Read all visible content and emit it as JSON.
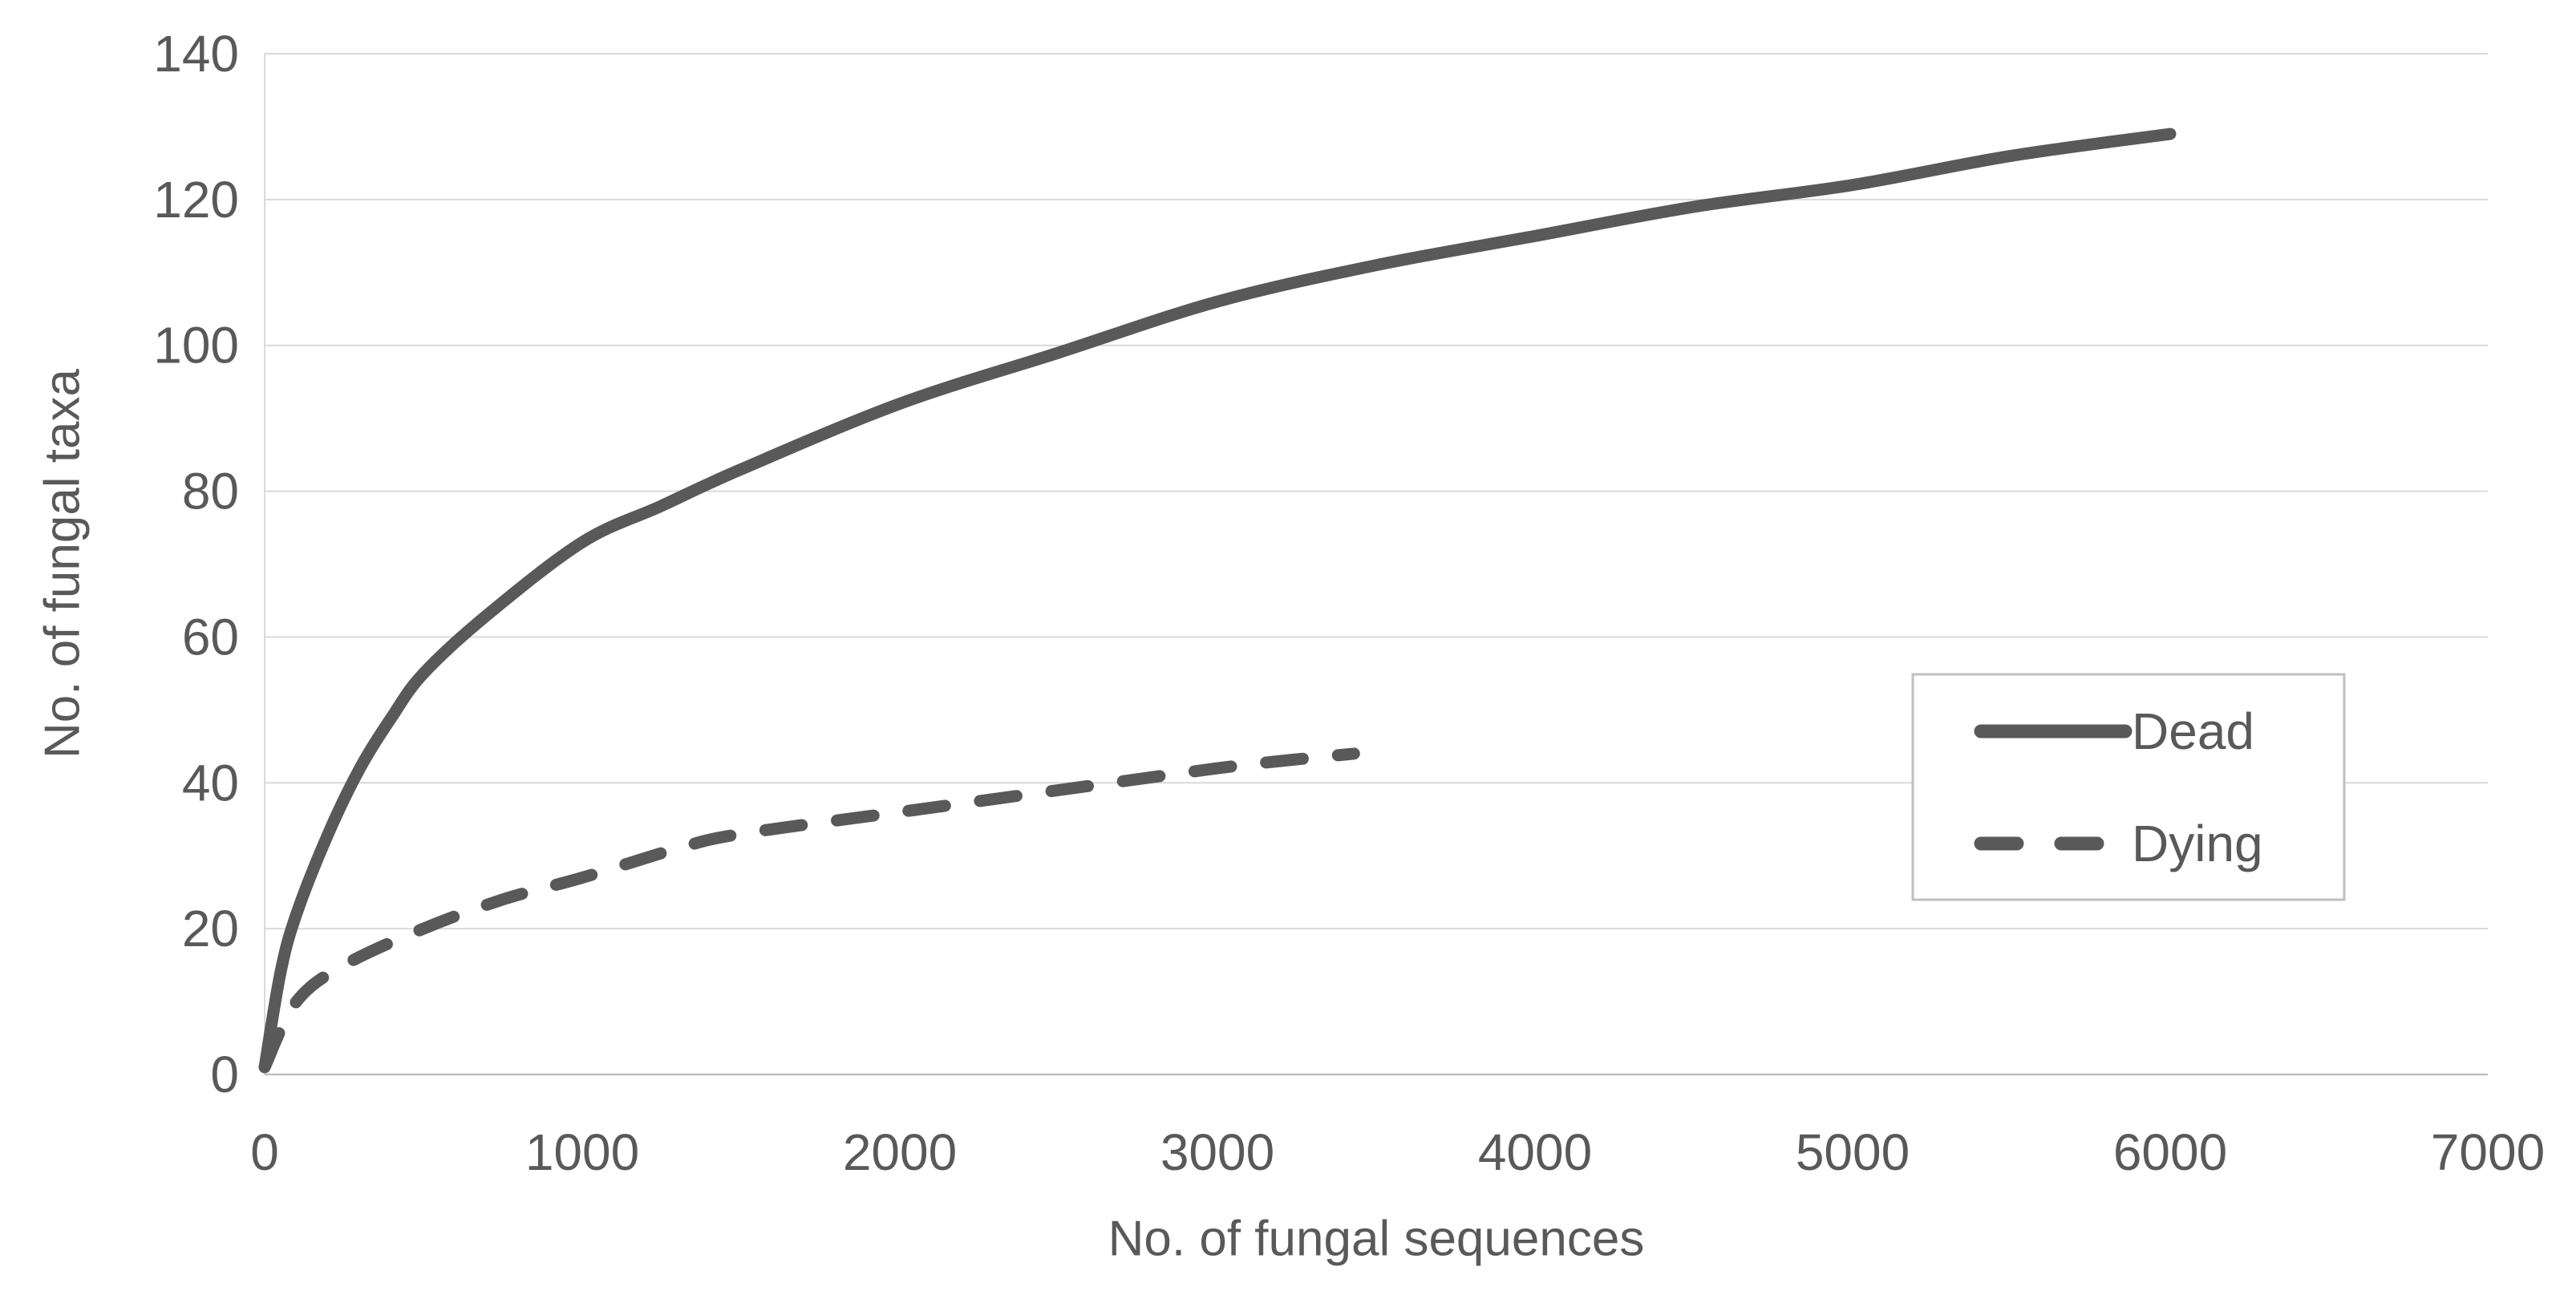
{
  "chart_data": {
    "type": "line",
    "title": "",
    "xlabel": "No. of fungal sequences",
    "ylabel": "No. of fungal taxa",
    "xlim": [
      0,
      7000
    ],
    "ylim": [
      0,
      140
    ],
    "x_ticks": [
      0,
      1000,
      2000,
      3000,
      4000,
      5000,
      6000,
      7000
    ],
    "y_ticks": [
      0,
      20,
      40,
      60,
      80,
      100,
      120,
      140
    ],
    "grid": "horizontal-only",
    "legend_position": "middle-right-box",
    "series": [
      {
        "name": "Dead",
        "style": "solid",
        "color": "#595959",
        "points": [
          [
            0,
            1
          ],
          [
            50,
            14
          ],
          [
            100,
            22
          ],
          [
            200,
            33
          ],
          [
            300,
            42
          ],
          [
            400,
            49
          ],
          [
            500,
            55
          ],
          [
            700,
            63
          ],
          [
            1000,
            73
          ],
          [
            1250,
            78
          ],
          [
            1500,
            83
          ],
          [
            2000,
            92
          ],
          [
            2500,
            99
          ],
          [
            3000,
            106
          ],
          [
            3500,
            111
          ],
          [
            4000,
            115
          ],
          [
            4500,
            119
          ],
          [
            5000,
            122
          ],
          [
            5500,
            126
          ],
          [
            6000,
            129
          ]
        ]
      },
      {
        "name": "Dying",
        "style": "dashed",
        "color": "#595959",
        "points": [
          [
            0,
            1
          ],
          [
            100,
            10
          ],
          [
            250,
            15
          ],
          [
            500,
            20
          ],
          [
            750,
            24
          ],
          [
            1000,
            27
          ],
          [
            1300,
            31
          ],
          [
            1500,
            33
          ],
          [
            2000,
            36
          ],
          [
            2500,
            39
          ],
          [
            3000,
            42
          ],
          [
            3200,
            43
          ],
          [
            3430,
            44
          ]
        ]
      }
    ]
  },
  "legend": {
    "items": [
      {
        "label": "Dead",
        "style": "solid"
      },
      {
        "label": "Dying",
        "style": "dashed"
      }
    ]
  },
  "colors": {
    "text": "#595959",
    "gridline": "#d9d9d9",
    "axis_line": "#bfbfbf",
    "plot_border": "#d9d9d9",
    "series_stroke": "#595959",
    "legend_border": "#bfbfbf",
    "background": "#ffffff"
  }
}
